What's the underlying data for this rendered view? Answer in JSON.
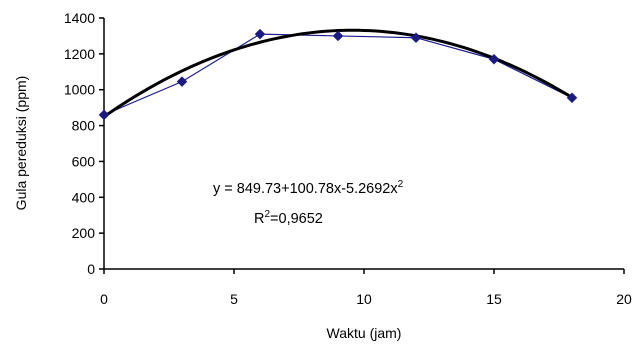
{
  "chart_data": {
    "type": "scatter",
    "title": "",
    "xlabel": "Waktu (jam)",
    "ylabel": "Gula pereduksi (ppm)",
    "xlim": [
      0,
      20
    ],
    "ylim": [
      0,
      1400
    ],
    "xticks": [
      0,
      5,
      10,
      15,
      20
    ],
    "yticks": [
      0,
      200,
      400,
      600,
      800,
      1000,
      1200,
      1400
    ],
    "grid": false,
    "legend": "none",
    "series": [
      {
        "x": [
          0,
          3,
          6,
          9,
          12,
          15,
          18
        ],
        "y": [
          860,
          1045,
          1310,
          1300,
          1290,
          1170,
          955
        ],
        "color": "#1c1c8c",
        "marker_color": "#1a1a80",
        "marker": "diamond"
      }
    ],
    "trendline": {
      "type": "polynomial",
      "coefficients": [
        849.73,
        100.78,
        -5.2692
      ],
      "x_range": [
        0,
        18
      ],
      "color": "#000000"
    },
    "annotations": {
      "equation_main": "y = 849.73+100.78x-5.2692x",
      "equation_sup": "2",
      "r2_prefix": "R",
      "r2_sup": "2",
      "r2_value": "=0,9652"
    }
  }
}
